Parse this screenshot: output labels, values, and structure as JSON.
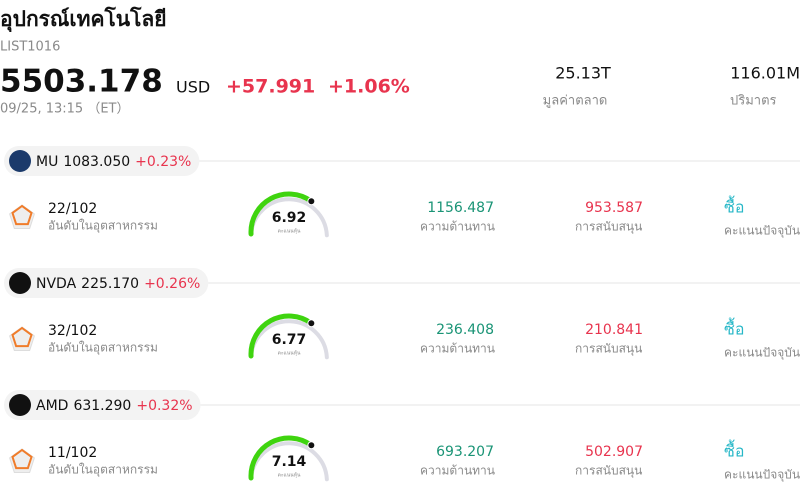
{
  "header": {
    "title": "อุปกรณ์เทคโนโลยี",
    "code": "LIST1016",
    "price": "5503.178",
    "currency": "USD",
    "change": "+57.991",
    "change_pct": "+1.06%",
    "time": "09/25, 13:15 （ET）",
    "stats": [
      {
        "value": "25.13T",
        "label": "มูลค่าตลาด"
      },
      {
        "value": "116.01M",
        "label": "ปริมาตร"
      }
    ]
  },
  "stocks": [
    {
      "ticker": "MU",
      "price": "1083.050",
      "change": "+0.23%",
      "rank": "22/102",
      "rank_label": "อันดับในอุตสาหกรรม",
      "score": "6.92",
      "score_label": "คะแนนหุ้น",
      "resistance": "1156.487",
      "resistance_label": "ความต้านทาน",
      "support": "953.587",
      "support_label": "การสนับสนุน",
      "signal": "ซื้อ",
      "signal_label": "คะแนนปัจจุบัน"
    },
    {
      "ticker": "NVDA",
      "price": "225.170",
      "change": "+0.26%",
      "rank": "32/102",
      "rank_label": "อันดับในอุตสาหกรรม",
      "score": "6.77",
      "score_label": "คะแนนหุ้น",
      "resistance": "236.408",
      "resistance_label": "ความต้านทาน",
      "support": "210.841",
      "support_label": "การสนับสนุน",
      "signal": "ซื้อ",
      "signal_label": "คะแนนปัจจุบัน"
    },
    {
      "ticker": "AMD",
      "price": "631.290",
      "change": "+0.32%",
      "rank": "11/102",
      "rank_label": "อันดับในอุตสาหกรรม",
      "score": "7.14",
      "score_label": "คะแนนหุ้น",
      "resistance": "693.207",
      "resistance_label": "ความต้านทาน",
      "support": "502.907",
      "support_label": "การสนับสนุน",
      "signal": "ซื้อ",
      "signal_label": "คะแนนปัจจุบัน"
    }
  ]
}
